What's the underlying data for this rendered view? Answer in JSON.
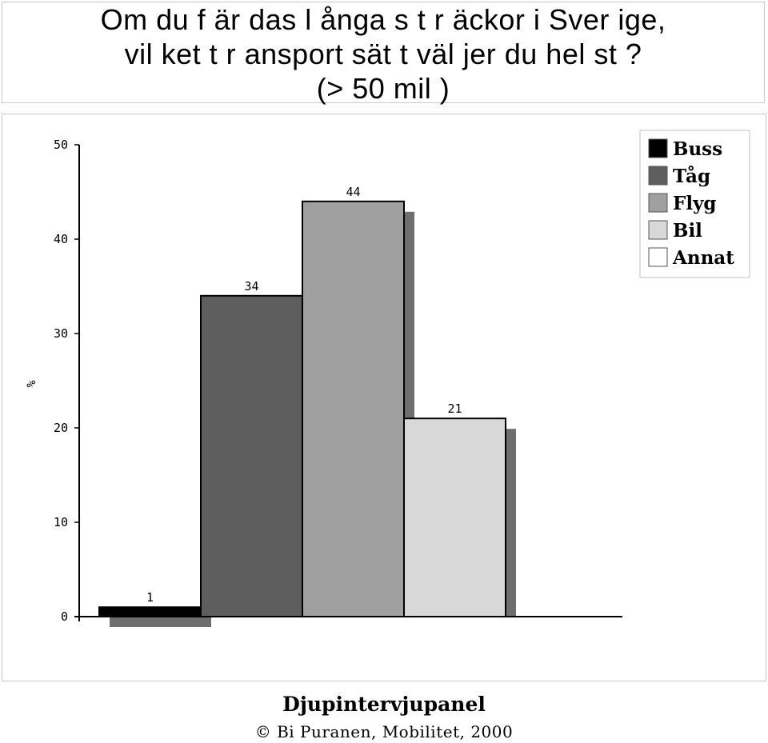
{
  "chart_data": {
    "type": "bar",
    "title_lines": [
      "Om du f är das l ånga s t r äckor  i Sver ige,",
      "vil ket  t r ansport sät t  väl jer  du hel st ?",
      "(> 50 mil )"
    ],
    "ylabel": "%",
    "ylim": [
      0,
      50
    ],
    "yticks": [
      "0",
      "10",
      "20",
      "30",
      "40",
      "50"
    ],
    "categories": [
      "Buss",
      "Tåg",
      "Flyg",
      "Bil",
      "Annat"
    ],
    "values": [
      1,
      34,
      44,
      21,
      0
    ],
    "data_labels": [
      "1",
      "34",
      "44",
      "21",
      ""
    ],
    "colors": [
      "#000000",
      "#5e5e5e",
      "#a0a0a0",
      "#d8d8d8",
      "#ffffff"
    ],
    "shadow_color": "#6e6e6e",
    "legend": {
      "position": "top-right",
      "entries": [
        "Buss",
        "Tåg",
        "Flyg",
        "Bil",
        "Annat"
      ]
    },
    "grid": false
  },
  "footer": {
    "title": "Djupintervjupanel",
    "credit": "©  Bi Puranen, Mobilitet, 2000"
  }
}
